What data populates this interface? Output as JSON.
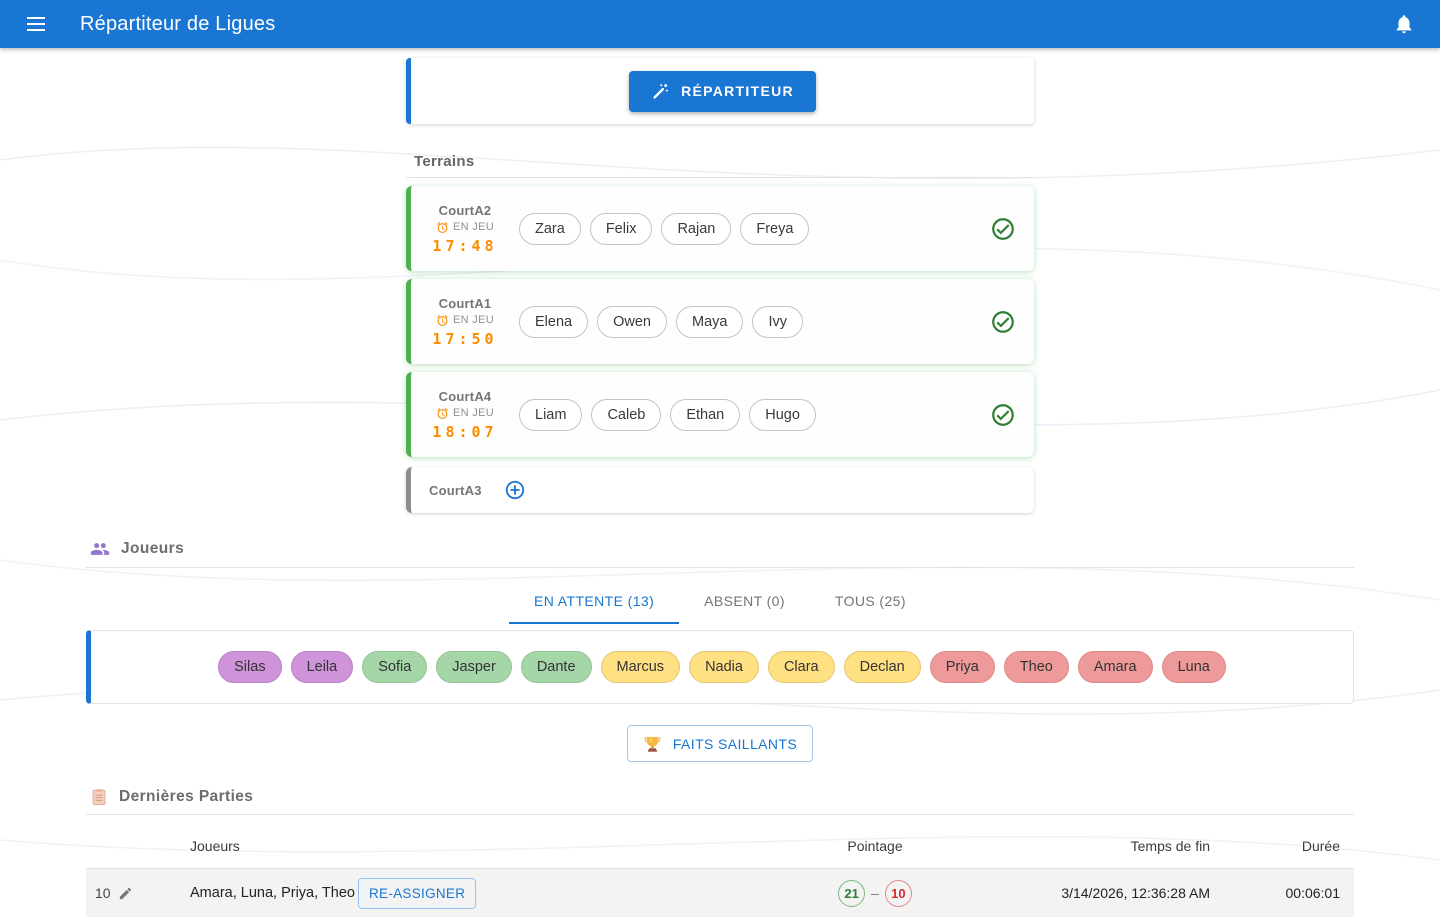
{
  "app_bar": {
    "title": "Répartiteur de Ligues"
  },
  "dispatcher": {
    "button_label": "RÉPARTITEUR"
  },
  "terrains": {
    "section_title": "Terrains",
    "courts": [
      {
        "name": "CourtA2",
        "state": "active",
        "status": "EN JEU",
        "timer": "17:48",
        "players": [
          "Zara",
          "Felix",
          "Rajan",
          "Freya"
        ]
      },
      {
        "name": "CourtA1",
        "state": "active",
        "status": "EN JEU",
        "timer": "17:50",
        "players": [
          "Elena",
          "Owen",
          "Maya",
          "Ivy"
        ]
      },
      {
        "name": "CourtA4",
        "state": "active",
        "status": "EN JEU",
        "timer": "18:07",
        "players": [
          "Liam",
          "Caleb",
          "Ethan",
          "Hugo"
        ]
      },
      {
        "name": "CourtA3",
        "state": "empty",
        "players": []
      }
    ]
  },
  "joueurs": {
    "section_title": "Joueurs",
    "tabs": [
      {
        "label": "EN ATTENTE (13)",
        "active": true
      },
      {
        "label": "ABSENT (0)",
        "active": false
      },
      {
        "label": "TOUS (25)",
        "active": false
      }
    ],
    "waiting_players": [
      {
        "name": "Silas",
        "group": "purple"
      },
      {
        "name": "Leila",
        "group": "purple"
      },
      {
        "name": "Sofia",
        "group": "green"
      },
      {
        "name": "Jasper",
        "group": "green"
      },
      {
        "name": "Dante",
        "group": "green"
      },
      {
        "name": "Marcus",
        "group": "yellow"
      },
      {
        "name": "Nadia",
        "group": "yellow"
      },
      {
        "name": "Clara",
        "group": "yellow"
      },
      {
        "name": "Declan",
        "group": "yellow"
      },
      {
        "name": "Priya",
        "group": "red"
      },
      {
        "name": "Theo",
        "group": "red"
      },
      {
        "name": "Amara",
        "group": "red"
      },
      {
        "name": "Luna",
        "group": "red"
      }
    ],
    "group_colors": {
      "purple": {
        "bg": "#ce93d8",
        "border": "#b584c6"
      },
      "green": {
        "bg": "#a5d6a7",
        "border": "#92c494"
      },
      "yellow": {
        "bg": "#ffe082",
        "border": "#e5c772"
      },
      "red": {
        "bg": "#ef9a9a",
        "border": "#dd8a8a"
      }
    }
  },
  "highlights": {
    "label": "FAITS SAILLANTS"
  },
  "dernieres_parties": {
    "section_title": "Dernières Parties",
    "columns": {
      "joueurs": "Joueurs",
      "pointage": "Pointage",
      "temps_fin": "Temps de fin",
      "duree": "Durée"
    },
    "rows": [
      {
        "index": "10",
        "joueurs": "Amara, Luna, Priya, Theo",
        "action_label": "RE-ASSIGNER",
        "score_a": "21",
        "score_b": "10",
        "temps_fin": "3/14/2026, 12:36:28 AM",
        "duree": "00:06:01"
      }
    ]
  },
  "colors": {
    "appbar": "#1976d2",
    "accent": "#1976d2",
    "timer_orange": "#fb8c00",
    "court_active_border": "#4caf50",
    "court_empty_border": "#8d8d8d",
    "score_win": "#2e7d32",
    "score_loss": "#d32f2f"
  }
}
